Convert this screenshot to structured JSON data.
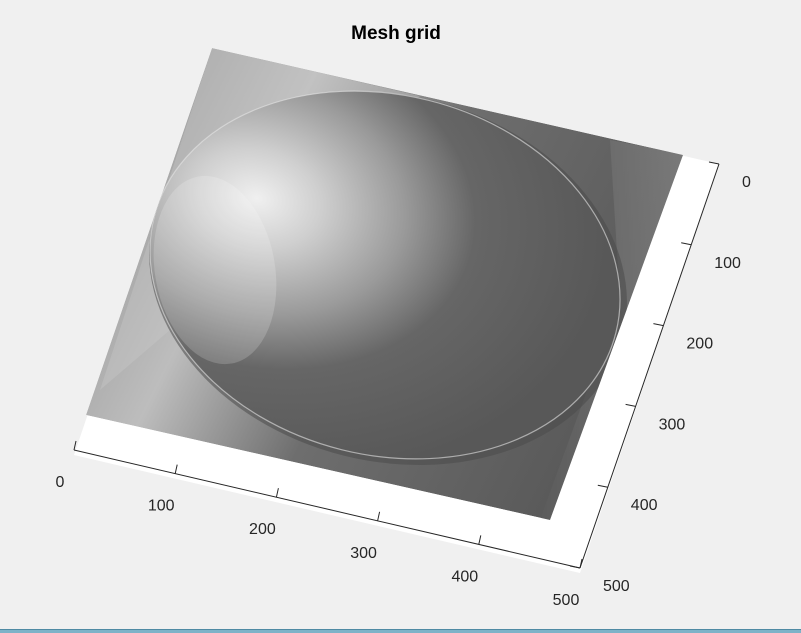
{
  "chart_data": {
    "type": "surface",
    "title": "Mesh grid",
    "xlabel": "",
    "ylabel": "",
    "colormap": "gray",
    "view": "3D perspective, shaded surface",
    "x_axis": {
      "range": [
        0,
        500
      ],
      "ticks": [
        0,
        100,
        200,
        300,
        400,
        500
      ]
    },
    "y_axis": {
      "range": [
        0,
        500
      ],
      "ticks": [
        0,
        100,
        200,
        300,
        400,
        500
      ]
    },
    "content": "circular dome shape on a flat plane",
    "grid": false
  },
  "colors": {
    "figure_bg": "#f0f0f0",
    "axes_bg": "#ffffff",
    "surface_dark": "#585858",
    "surface_light": "#dcdcdc"
  }
}
